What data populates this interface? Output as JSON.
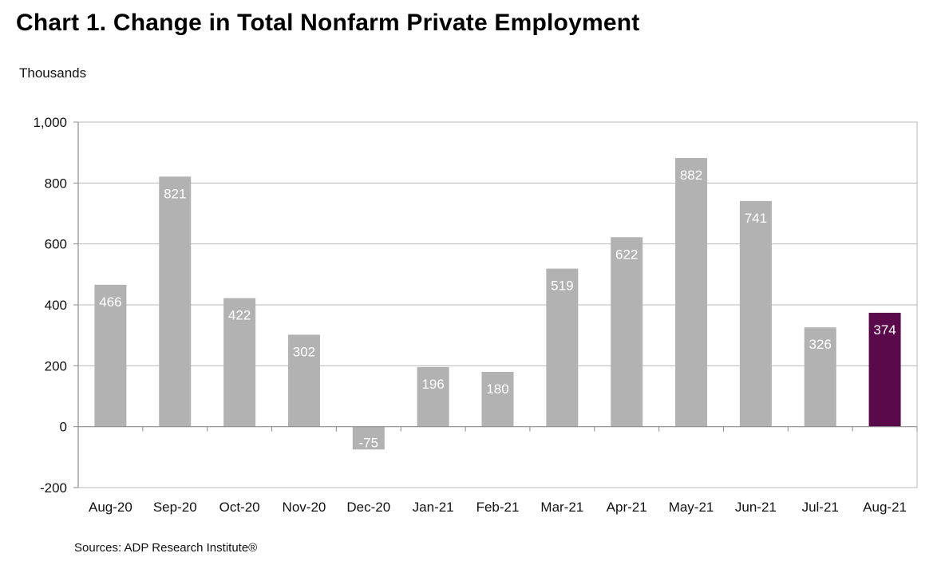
{
  "title": "Chart 1. Change in Total Nonfarm Private Employment",
  "source": "Sources: ADP Research Institute®",
  "chart_data": {
    "type": "bar",
    "title": "Chart 1. Change in Total Nonfarm Private Employment",
    "ylabel": "Thousands",
    "xlabel": "",
    "categories": [
      "Aug-20",
      "Sep-20",
      "Oct-20",
      "Nov-20",
      "Dec-20",
      "Jan-21",
      "Feb-21",
      "Mar-21",
      "Apr-21",
      "May-21",
      "Jun-21",
      "Jul-21",
      "Aug-21"
    ],
    "values": [
      466,
      821,
      422,
      302,
      -75,
      196,
      180,
      519,
      622,
      882,
      741,
      326,
      374
    ],
    "data_labels": [
      "466",
      "821",
      "422",
      "302",
      "-75",
      "196",
      "180",
      "519",
      "622",
      "882",
      "741",
      "326",
      "374"
    ],
    "ylim": [
      -200,
      1000
    ],
    "yticks": [
      -200,
      0,
      200,
      400,
      600,
      800,
      1000
    ],
    "ytick_labels": [
      "-200",
      "0",
      "200",
      "400",
      "600",
      "800",
      "1,000"
    ],
    "grid": true,
    "legend": "none",
    "colors": {
      "bar": "#b2b2b2",
      "highlight": "#5a0a4a",
      "grid": "#b8b8b8",
      "axis": "#8c8c8c"
    },
    "highlight_index": 12
  }
}
